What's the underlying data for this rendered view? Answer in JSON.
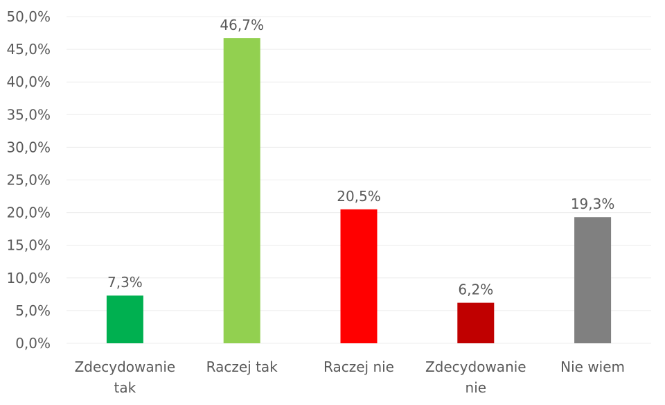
{
  "chart_data": {
    "type": "bar",
    "categories": [
      [
        "Zdecydowanie",
        "tak"
      ],
      [
        "Raczej tak"
      ],
      [
        "Raczej nie"
      ],
      [
        "Zdecydowanie",
        "nie"
      ],
      [
        "Nie wiem"
      ]
    ],
    "values": [
      7.3,
      46.7,
      20.5,
      6.2,
      19.3
    ],
    "value_labels": [
      "7,3%",
      "46,7%",
      "20,5%",
      "6,2%",
      "19,3%"
    ],
    "colors": [
      "#00b050",
      "#92d050",
      "#ff0000",
      "#c00000",
      "#808080"
    ],
    "y_ticks": [
      "0,0%",
      "5,0%",
      "10,0%",
      "15,0%",
      "20,0%",
      "25,0%",
      "30,0%",
      "35,0%",
      "40,0%",
      "45,0%",
      "50,0%"
    ],
    "ylim": [
      0,
      50
    ],
    "y_step": 5,
    "grid": true,
    "legend": "none"
  }
}
